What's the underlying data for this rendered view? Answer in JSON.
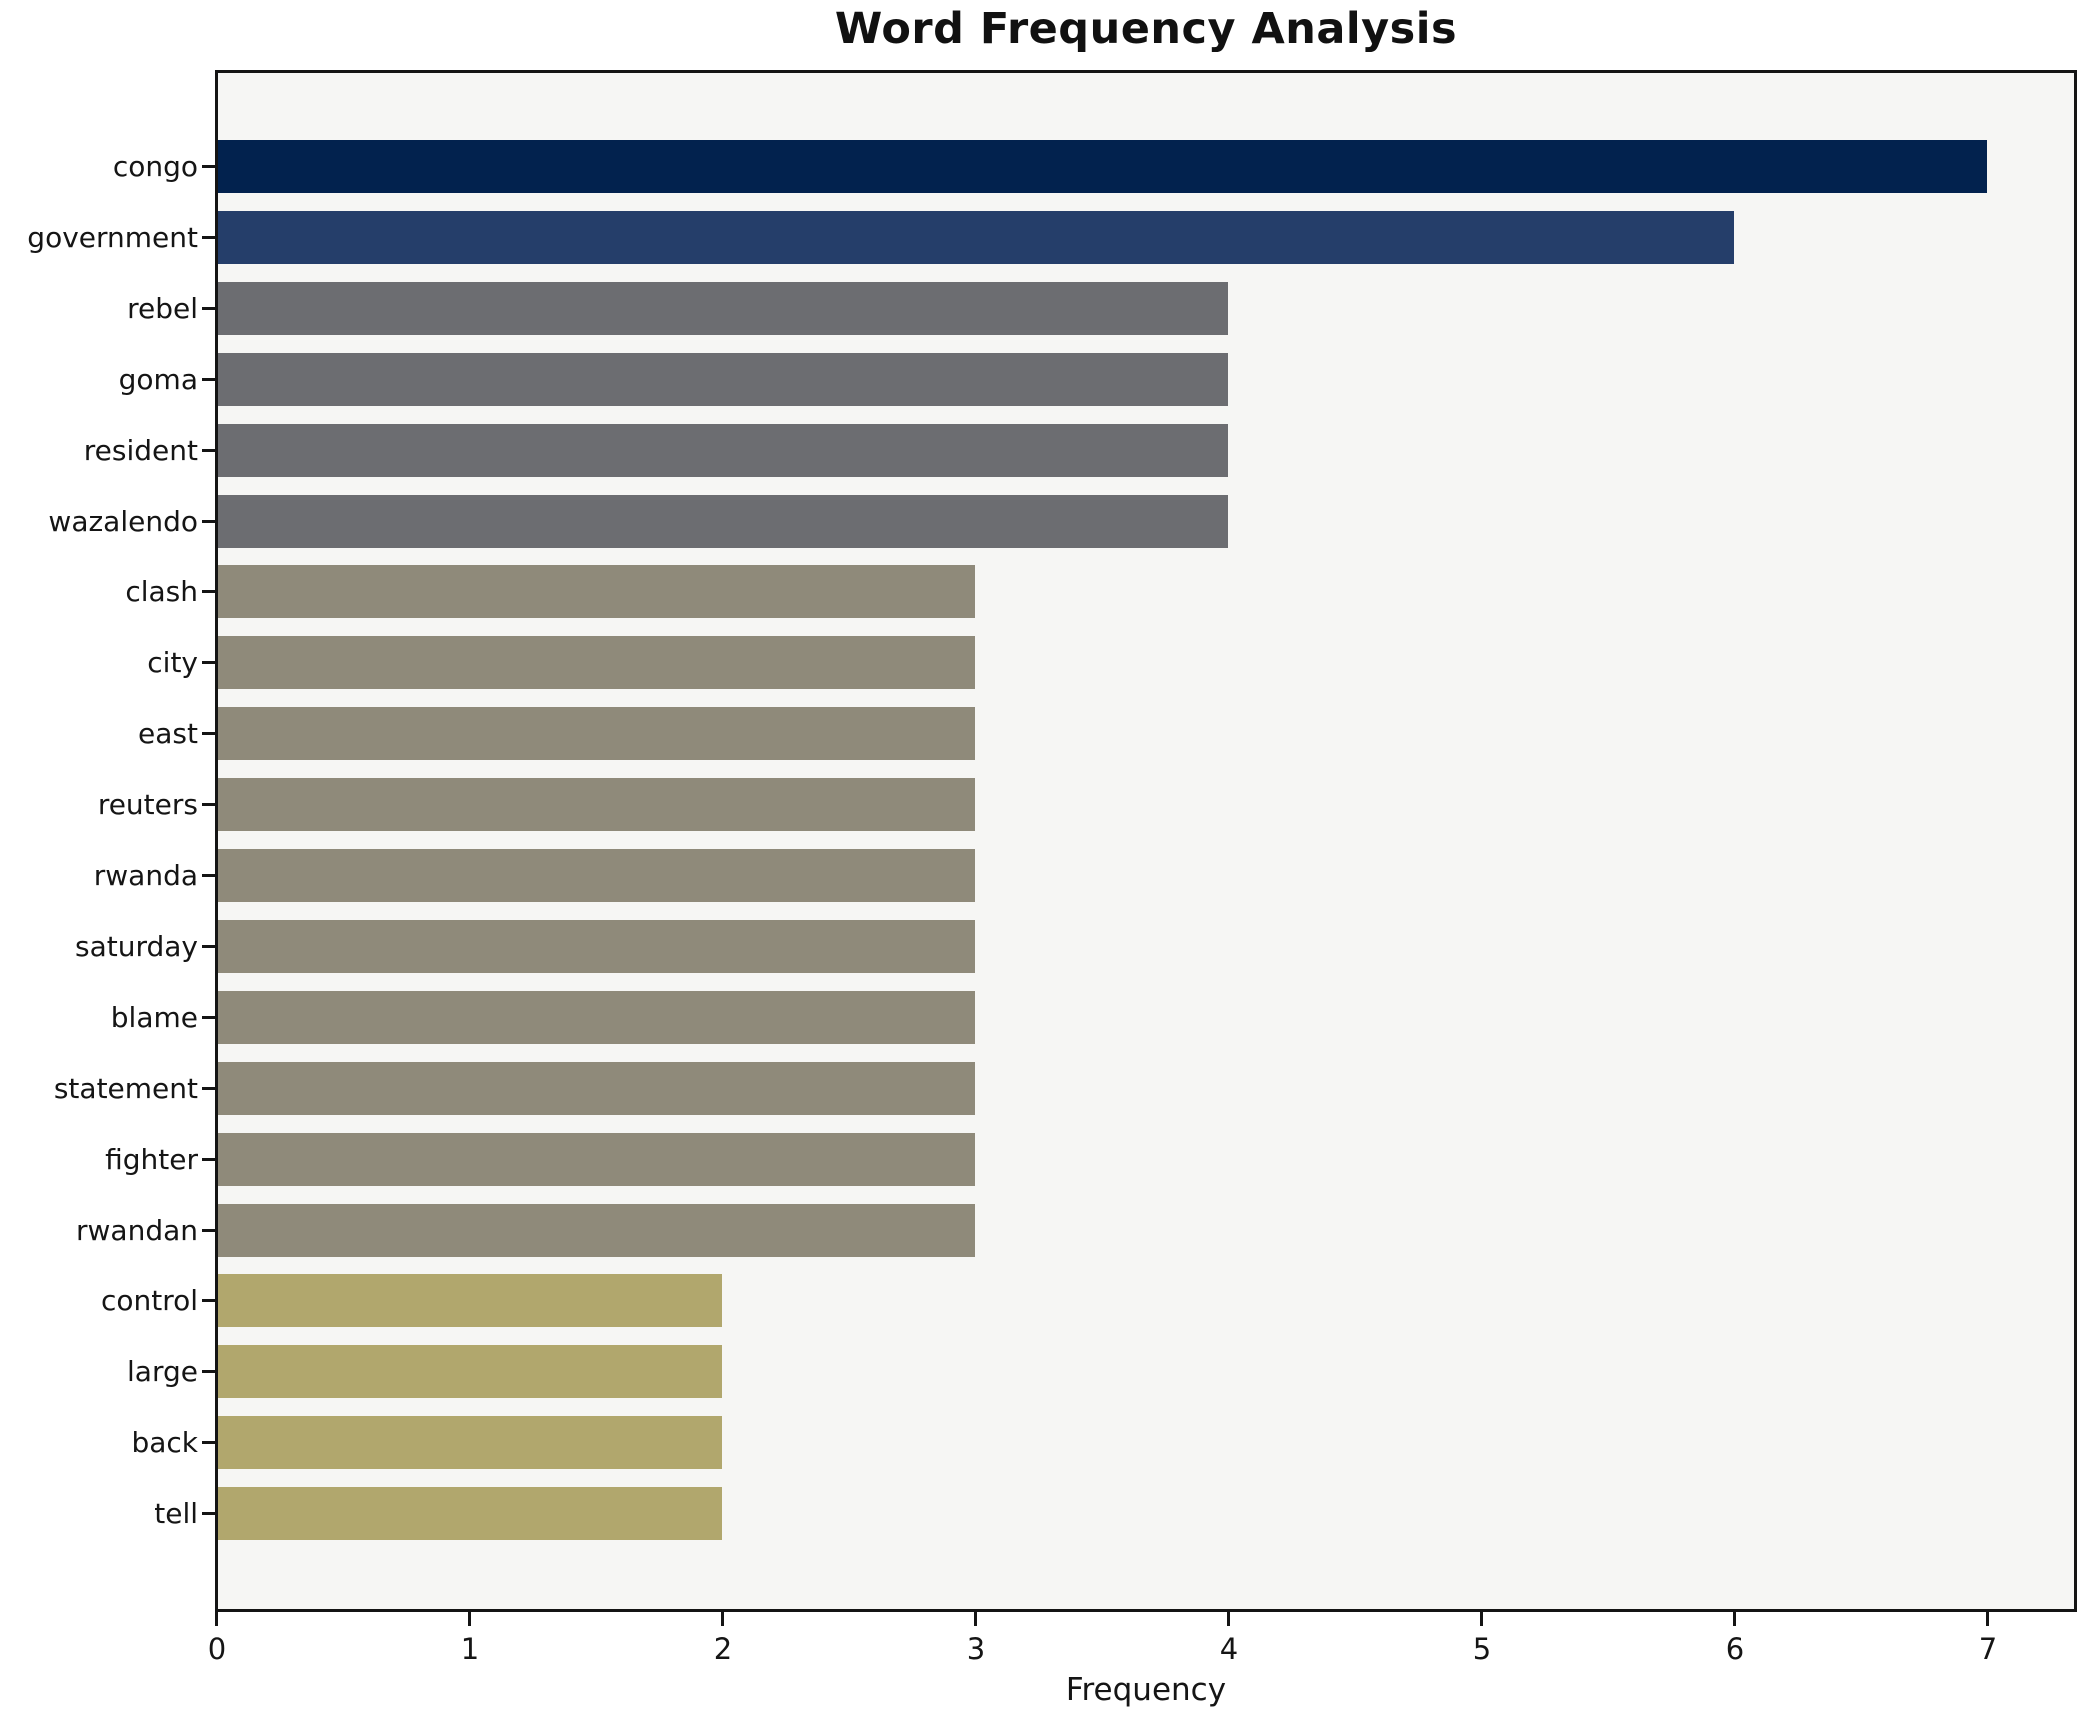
{
  "title": "Word Frequency Analysis",
  "xlabel": "Frequency",
  "chart_data": {
    "type": "bar",
    "orientation": "horizontal",
    "title": "Word Frequency Analysis",
    "xlabel": "Frequency",
    "ylabel": "",
    "categories": [
      "congo",
      "government",
      "rebel",
      "goma",
      "resident",
      "wazalendo",
      "clash",
      "city",
      "east",
      "reuters",
      "rwanda",
      "saturday",
      "blame",
      "statement",
      "fighter",
      "rwandan",
      "control",
      "large",
      "back",
      "tell"
    ],
    "values": [
      7,
      6,
      4,
      4,
      4,
      4,
      3,
      3,
      3,
      3,
      3,
      3,
      3,
      3,
      3,
      3,
      2,
      2,
      2,
      2
    ],
    "bar_colors": [
      "#02224e",
      "#253e6a",
      "#6c6d71",
      "#6c6d71",
      "#6c6d71",
      "#6c6d71",
      "#8f8a7a",
      "#8f8a7a",
      "#8f8a7a",
      "#8f8a7a",
      "#8f8a7a",
      "#8f8a7a",
      "#8f8a7a",
      "#8f8a7a",
      "#8f8a7a",
      "#8f8a7a",
      "#b1a76d",
      "#b1a76d",
      "#b1a76d",
      "#b1a76d"
    ],
    "x_ticks": [
      "0",
      "1",
      "2",
      "3",
      "4",
      "5",
      "6",
      "7"
    ],
    "xlim": [
      0,
      7.36
    ],
    "grid": false,
    "legend": false,
    "plot_background": "#f6f6f4",
    "figure_background": "#ffffff",
    "spine_color": "#141414"
  }
}
